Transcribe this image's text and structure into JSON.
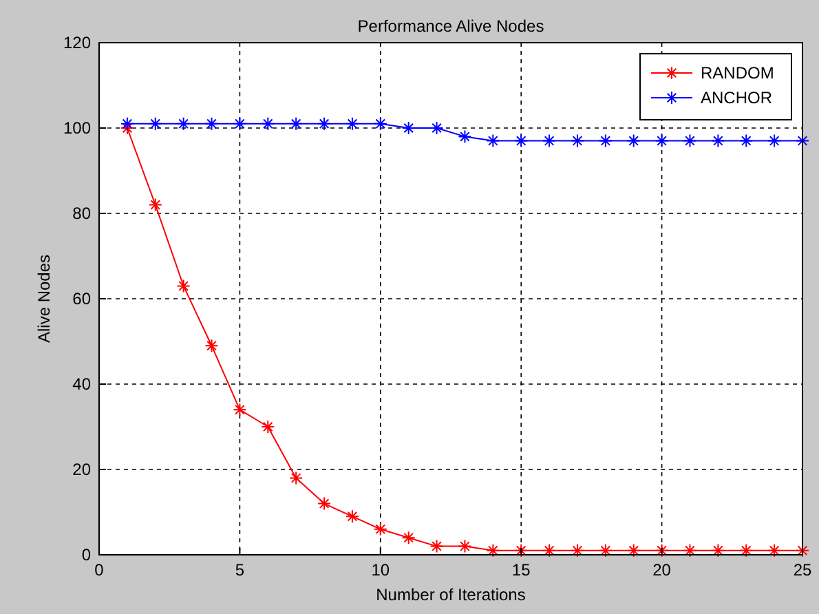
{
  "chart_data": {
    "type": "line",
    "title": "Performance Alive Nodes",
    "xlabel": "Number of Iterations",
    "ylabel": "Alive Nodes",
    "x": [
      1,
      2,
      3,
      4,
      5,
      6,
      7,
      8,
      9,
      10,
      11,
      12,
      13,
      14,
      15,
      16,
      17,
      18,
      19,
      20,
      21,
      22,
      23,
      24,
      25
    ],
    "series": [
      {
        "name": "RANDOM",
        "color": "#ff0000",
        "values": [
          100,
          82,
          63,
          49,
          34,
          30,
          18,
          12,
          9,
          6,
          4,
          2,
          2,
          1,
          1,
          1,
          1,
          1,
          1,
          1,
          1,
          1,
          1,
          1,
          1
        ]
      },
      {
        "name": "ANCHOR",
        "color": "#0000ff",
        "values": [
          101,
          101,
          101,
          101,
          101,
          101,
          101,
          101,
          101,
          101,
          100,
          100,
          98,
          97,
          97,
          97,
          97,
          97,
          97,
          97,
          97,
          97,
          97,
          97,
          97
        ]
      }
    ],
    "xlim": [
      0,
      25
    ],
    "xticks": [
      0,
      5,
      10,
      15,
      20,
      25
    ],
    "ylim": [
      0,
      120
    ],
    "yticks": [
      0,
      20,
      40,
      60,
      80,
      100,
      120
    ],
    "grid": true,
    "legend": "top right",
    "marker": "cross",
    "line_style": "solid"
  }
}
